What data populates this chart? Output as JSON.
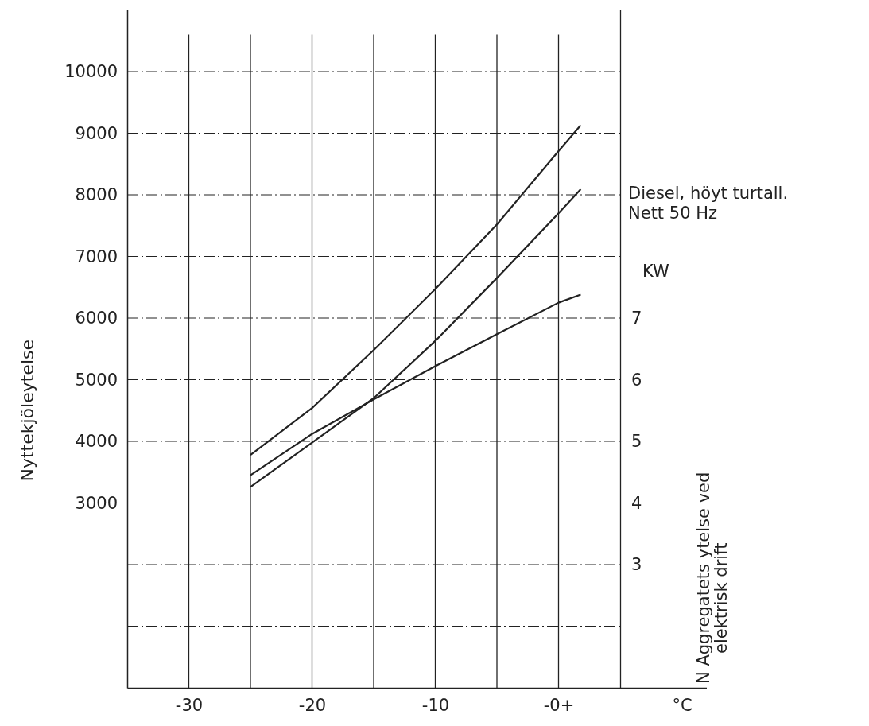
{
  "chart_data": {
    "type": "line",
    "ylabel": "Nyttekjöleytelse",
    "y2label": "N Aggregatets ytelse ved\nelektrisk drift",
    "xlim": [
      -35,
      12
    ],
    "xticks": [
      {
        "value": -35,
        "label": null
      },
      -30,
      {
        "value": -25,
        "label": null
      },
      -20,
      {
        "value": -15,
        "label": null
      },
      -10,
      {
        "value": -5,
        "label": null
      },
      {
        "value": 0,
        "label": "-0+"
      },
      {
        "value": 5,
        "label": null
      },
      {
        "value": 10,
        "label": "°C"
      }
    ],
    "ylim": [
      0,
      11000
    ],
    "yticks": [
      {
        "value": 1000,
        "label": null
      },
      {
        "value": 2000,
        "label": null
      },
      3000,
      4000,
      5000,
      6000,
      7000,
      8000,
      9000,
      10000
    ],
    "y2lim": [
      1,
      12
    ],
    "y2ticks": [
      3,
      4,
      5,
      6,
      7
    ],
    "grid": true,
    "line_style": "solid",
    "marker": "none",
    "annotations": [
      "Diesel, höyt turtall.",
      "Nett 50 Hz",
      "KW"
    ],
    "series": [
      {
        "color": "#222222",
        "x": [
          -25,
          -20,
          -15,
          -10,
          -5,
          0,
          1.8
        ],
        "values": [
          3780,
          4540,
          5480,
          6470,
          7520,
          8710,
          9130
        ]
      },
      {
        "color": "#222222",
        "x": [
          -25,
          -20,
          -15,
          -10,
          -5,
          0,
          1.8
        ],
        "values": [
          3260,
          3980,
          4700,
          5630,
          6650,
          7700,
          8090
        ]
      },
      {
        "color": "#222222",
        "x": [
          -25,
          -20,
          -15,
          -10,
          -5,
          0,
          1.8
        ],
        "values": [
          3450,
          4120,
          4680,
          5220,
          5740,
          6250,
          6380
        ]
      }
    ]
  }
}
